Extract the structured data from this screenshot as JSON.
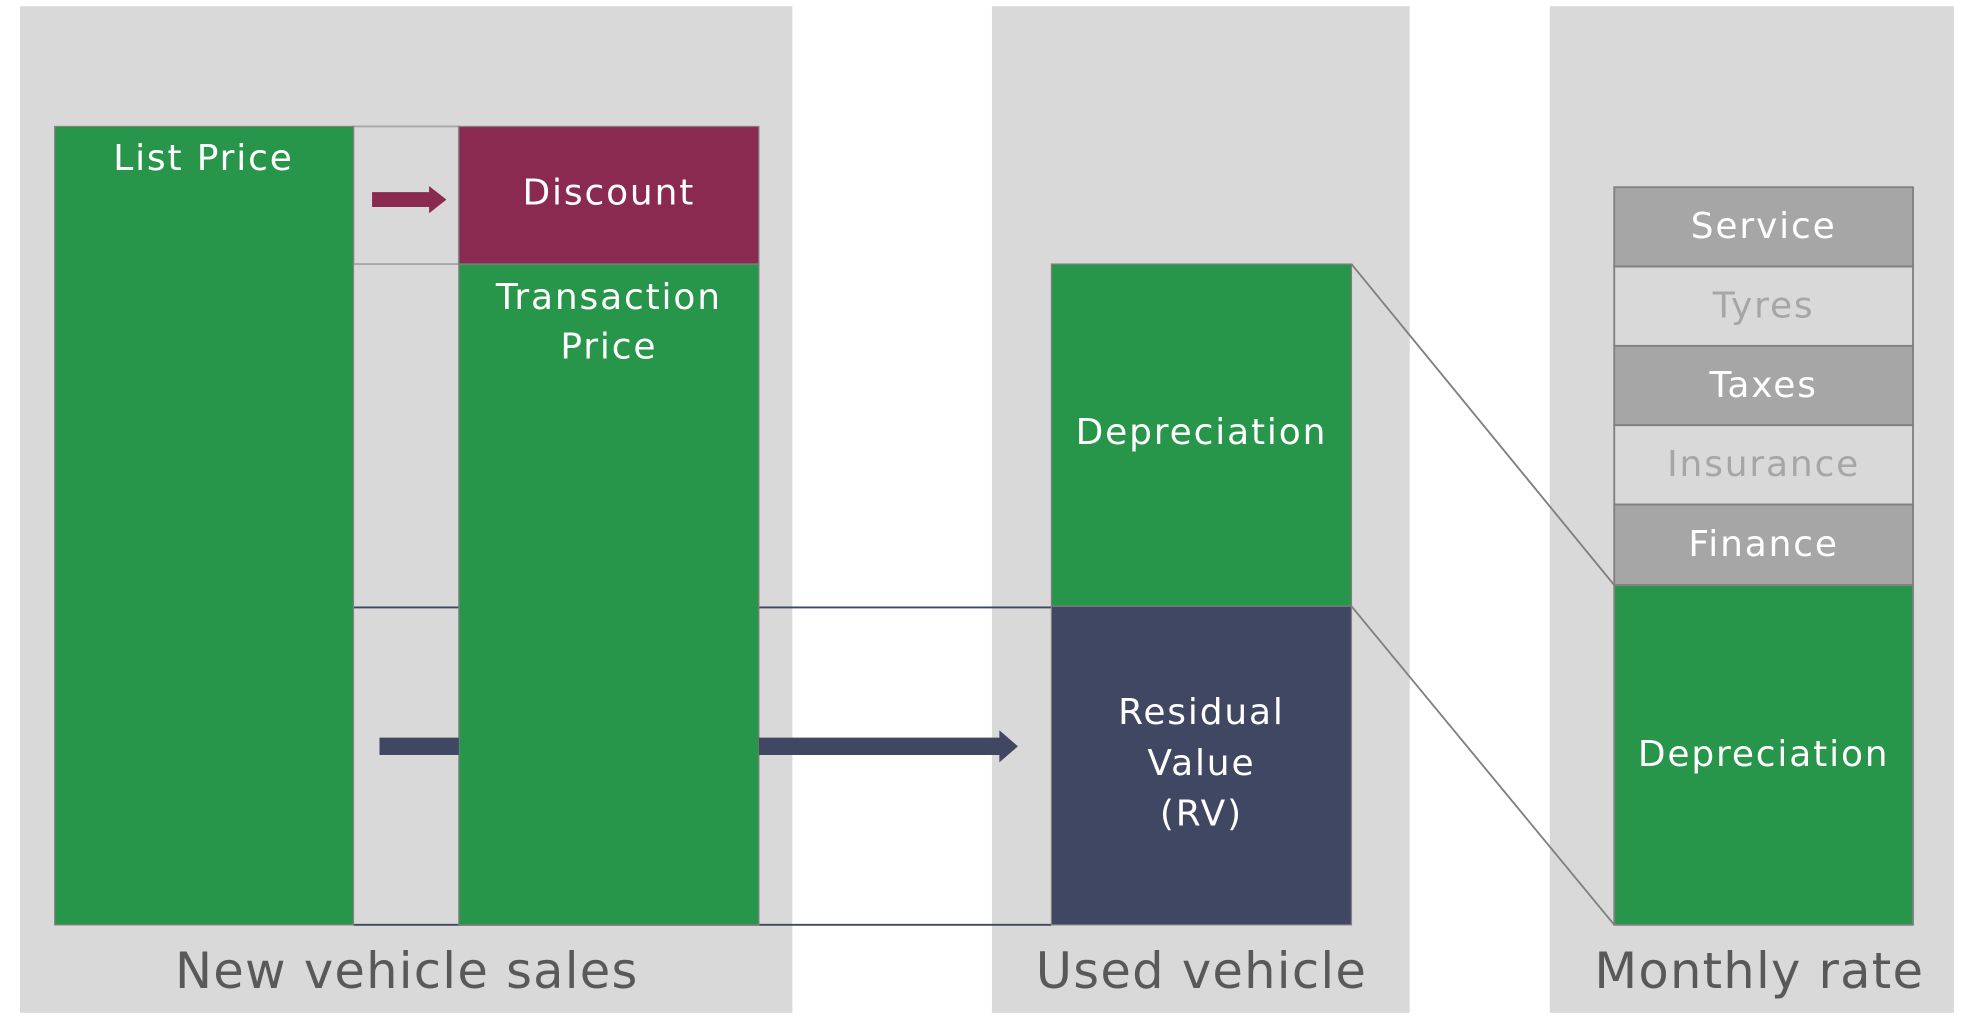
{
  "panels": [
    {
      "label": "New vehicle sales"
    },
    {
      "label": "Used vehicle"
    },
    {
      "label": "Monthly rate"
    }
  ],
  "new_vehicle": {
    "list_price": "List Price",
    "discount": "Discount",
    "transaction_price": [
      "Transaction",
      "Price"
    ]
  },
  "used_vehicle": {
    "depreciation": "Depreciation",
    "residual_value": [
      "Residual",
      "Value",
      "(RV)"
    ]
  },
  "monthly_rate": {
    "items": [
      "Service",
      "Tyres",
      "Taxes",
      "Insurance",
      "Finance",
      "Depreciation"
    ]
  }
}
